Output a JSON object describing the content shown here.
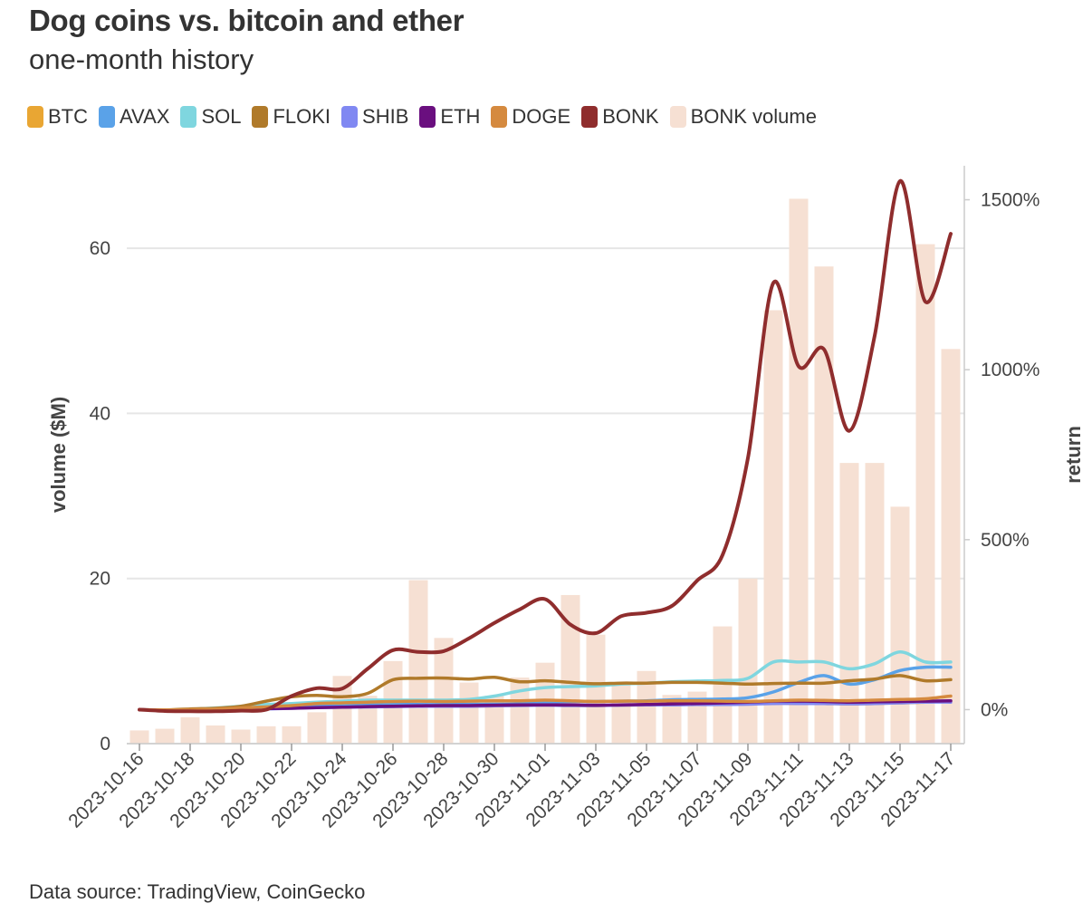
{
  "title": "Dog coins vs. bitcoin and ether",
  "subtitle": "one-month history",
  "source": "Data source: TradingView, CoinGecko",
  "legend": [
    {
      "label": "BTC",
      "color": "#e9a633"
    },
    {
      "label": "AVAX",
      "color": "#5aa2e8"
    },
    {
      "label": "SOL",
      "color": "#7fd6df"
    },
    {
      "label": "FLOKI",
      "color": "#b07a2a"
    },
    {
      "label": "SHIB",
      "color": "#8088f2"
    },
    {
      "label": "ETH",
      "color": "#6a0f7f"
    },
    {
      "label": "DOGE",
      "color": "#d58a3f"
    },
    {
      "label": "BONK",
      "color": "#8f2d2d"
    },
    {
      "label": "BONK volume",
      "color": "#f6e0d3"
    }
  ],
  "chart_data": {
    "type": "line",
    "xlabel": "",
    "ylabel_left": "volume ($M)",
    "ylabel_right": "return",
    "ylim_left": [
      0,
      70
    ],
    "ylim_right": [
      -100,
      1600
    ],
    "yticks_left": [
      "0",
      "20",
      "40",
      "60"
    ],
    "yticks_right": [
      "0%",
      "500%",
      "1000%",
      "1500%"
    ],
    "x": [
      "2023-10-16",
      "2023-10-17",
      "2023-10-18",
      "2023-10-19",
      "2023-10-20",
      "2023-10-21",
      "2023-10-22",
      "2023-10-23",
      "2023-10-24",
      "2023-10-25",
      "2023-10-26",
      "2023-10-27",
      "2023-10-28",
      "2023-10-29",
      "2023-10-30",
      "2023-10-31",
      "2023-11-01",
      "2023-11-02",
      "2023-11-03",
      "2023-11-04",
      "2023-11-05",
      "2023-11-06",
      "2023-11-07",
      "2023-11-08",
      "2023-11-09",
      "2023-11-10",
      "2023-11-11",
      "2023-11-12",
      "2023-11-13",
      "2023-11-14",
      "2023-11-15",
      "2023-11-16",
      "2023-11-17"
    ],
    "xtick_labels": [
      "2023-10-16",
      "2023-10-18",
      "2023-10-20",
      "2023-10-22",
      "2023-10-24",
      "2023-10-26",
      "2023-10-28",
      "2023-10-30",
      "2023-11-01",
      "2023-11-03",
      "2023-11-05",
      "2023-11-07",
      "2023-11-09",
      "2023-11-11",
      "2023-11-13",
      "2023-11-15",
      "2023-11-17"
    ],
    "bars": {
      "name": "BONK volume",
      "axis": "left",
      "values": [
        1.6,
        1.8,
        3.2,
        2.2,
        1.7,
        2.1,
        2.1,
        3.8,
        8.2,
        5.8,
        10.0,
        19.8,
        12.8,
        7.4,
        5.8,
        8.0,
        9.8,
        18.0,
        13.2,
        7.2,
        8.8,
        5.9,
        6.3,
        14.2,
        20.0,
        52.5,
        66.0,
        57.8,
        34.0,
        34.0,
        28.7,
        60.5,
        47.8
      ]
    },
    "series": [
      {
        "name": "BTC",
        "axis": "right",
        "values": [
          0,
          -3,
          -2,
          0,
          2,
          5,
          6,
          8,
          9,
          9,
          10,
          10,
          10,
          10,
          11,
          12,
          13,
          12,
          12,
          13,
          14,
          15,
          16,
          17,
          18,
          19,
          18,
          18,
          17,
          18,
          20,
          22,
          26
        ]
      },
      {
        "name": "AVAX",
        "axis": "right",
        "values": [
          0,
          -3,
          -1,
          0,
          2,
          5,
          8,
          11,
          12,
          14,
          15,
          15,
          15,
          16,
          16,
          17,
          22,
          24,
          24,
          25,
          26,
          29,
          30,
          31,
          35,
          52,
          80,
          100,
          75,
          88,
          115,
          125,
          125
        ]
      },
      {
        "name": "SOL",
        "axis": "right",
        "values": [
          0,
          -2,
          1,
          5,
          10,
          15,
          18,
          22,
          25,
          28,
          28,
          28,
          28,
          30,
          40,
          55,
          65,
          68,
          70,
          75,
          78,
          82,
          84,
          86,
          92,
          140,
          140,
          140,
          120,
          135,
          170,
          140,
          140
        ]
      },
      {
        "name": "FLOKI",
        "axis": "right",
        "values": [
          0,
          -1,
          2,
          4,
          10,
          25,
          38,
          42,
          38,
          48,
          88,
          92,
          93,
          90,
          95,
          82,
          85,
          80,
          76,
          78,
          78,
          80,
          80,
          78,
          75,
          77,
          78,
          78,
          85,
          90,
          100,
          85,
          88
        ]
      },
      {
        "name": "SHIB",
        "axis": "right",
        "values": [
          0,
          -2,
          -2,
          -1,
          0,
          2,
          4,
          6,
          7,
          8,
          9,
          10,
          10,
          10,
          11,
          12,
          13,
          12,
          12,
          13,
          14,
          14,
          15,
          15,
          16,
          18,
          18,
          18,
          17,
          18,
          20,
          22,
          22
        ]
      },
      {
        "name": "ETH",
        "axis": "right",
        "values": [
          0,
          -2,
          -3,
          -2,
          0,
          3,
          4,
          6,
          7,
          9,
          10,
          11,
          12,
          12,
          13,
          14,
          14,
          14,
          13,
          14,
          15,
          17,
          18,
          20,
          22,
          25,
          25,
          24,
          22,
          23,
          24,
          25,
          26
        ]
      },
      {
        "name": "DOGE",
        "axis": "right",
        "values": [
          0,
          -1,
          0,
          2,
          5,
          8,
          12,
          18,
          20,
          22,
          24,
          25,
          24,
          25,
          26,
          26,
          28,
          26,
          24,
          25,
          25,
          26,
          26,
          25,
          24,
          26,
          28,
          27,
          26,
          28,
          30,
          32,
          40
        ]
      },
      {
        "name": "BONK",
        "axis": "right",
        "values": [
          0,
          -4,
          -5,
          -5,
          -3,
          0,
          40,
          63,
          62,
          120,
          175,
          170,
          172,
          210,
          255,
          295,
          325,
          250,
          225,
          275,
          285,
          305,
          380,
          455,
          740,
          1255,
          1010,
          1060,
          820,
          1100,
          1555,
          1200,
          1400
        ]
      }
    ]
  }
}
